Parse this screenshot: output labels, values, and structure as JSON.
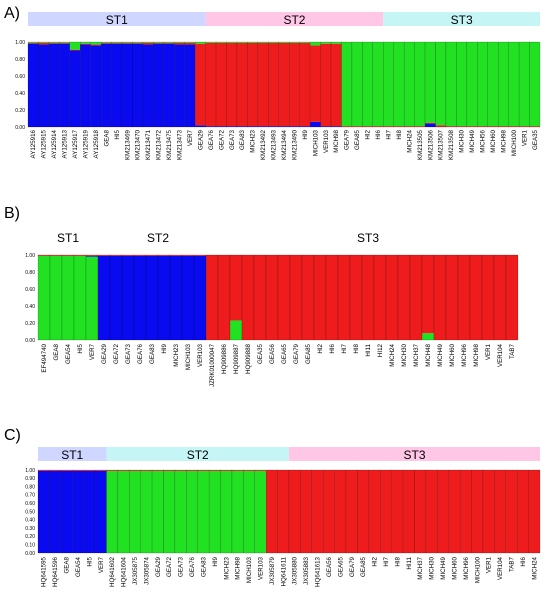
{
  "chart_data": [
    {
      "type": "bar",
      "stacked": true,
      "panel_label": "A)",
      "yticks": [
        "0.00",
        "0.20",
        "0.40",
        "0.60",
        "0.80",
        "1.00"
      ],
      "ylim": [
        0,
        1
      ],
      "cluster_colors": {
        "ST1": "#0a0af0",
        "ST2": "#ee1c1c",
        "ST3": "#22e022"
      },
      "groups": [
        {
          "label": "ST1",
          "cluster": "ST1",
          "n": 17
        },
        {
          "label": "ST2",
          "cluster": "ST2",
          "n": 17
        },
        {
          "label": "ST3",
          "cluster": "ST3",
          "n": 20
        }
      ],
      "categories": [
        "AY125916",
        "AY125915",
        "AY125914",
        "AY125913",
        "AY125917",
        "AY125919",
        "AY125918",
        "GEA8",
        "HI5",
        "KM213469",
        "KM213470",
        "KM213471",
        "KM213472",
        "KM213475",
        "KM213473",
        "VER7",
        "GEA29",
        "GEA76",
        "GEA72",
        "GEA73",
        "GEA83",
        "MICH23",
        "KM213492",
        "KM213493",
        "KM213494",
        "KM213490",
        "HI9",
        "MICH103",
        "VER103",
        "MICH98",
        "GEA79",
        "GEA85",
        "HI2",
        "HI6",
        "HI7",
        "HI8",
        "MICH24",
        "KM213505",
        "KM213506",
        "KM213507",
        "KM213508",
        "MICH30",
        "MICH49",
        "MICH56",
        "MICH60",
        "MICH98",
        "MICH100",
        "VER1",
        "GEA35"
      ],
      "series": [
        {
          "cluster": "ST1",
          "values": [
            0.98,
            0.97,
            0.98,
            0.98,
            0.9,
            0.97,
            0.96,
            0.98,
            0.98,
            0.98,
            0.98,
            0.97,
            0.98,
            0.98,
            0.97,
            0.97,
            0.02,
            0.01,
            0.01,
            0.01,
            0.01,
            0.01,
            0.01,
            0.01,
            0.01,
            0.01,
            0.01,
            0.06,
            0.01,
            0.01,
            0.0,
            0.0,
            0.0,
            0.0,
            0.0,
            0.0,
            0.0,
            0.0,
            0.04,
            0.0,
            0.0,
            0.0,
            0.0,
            0.0,
            0.0,
            0.0,
            0.0,
            0.0,
            0.0
          ]
        },
        {
          "cluster": "ST2",
          "values": [
            0.01,
            0.02,
            0.01,
            0.01,
            0.01,
            0.01,
            0.01,
            0.01,
            0.01,
            0.01,
            0.01,
            0.02,
            0.01,
            0.01,
            0.02,
            0.02,
            0.96,
            0.98,
            0.98,
            0.98,
            0.98,
            0.98,
            0.98,
            0.98,
            0.98,
            0.98,
            0.98,
            0.9,
            0.97,
            0.97,
            0.01,
            0.01,
            0.01,
            0.01,
            0.01,
            0.01,
            0.01,
            0.01,
            0.01,
            0.02,
            0.01,
            0.01,
            0.01,
            0.01,
            0.01,
            0.01,
            0.01,
            0.01,
            0.01
          ]
        },
        {
          "cluster": "ST3",
          "values": [
            0.01,
            0.01,
            0.01,
            0.01,
            0.09,
            0.02,
            0.03,
            0.01,
            0.01,
            0.01,
            0.01,
            0.01,
            0.01,
            0.01,
            0.01,
            0.01,
            0.02,
            0.01,
            0.01,
            0.01,
            0.01,
            0.01,
            0.01,
            0.01,
            0.01,
            0.01,
            0.01,
            0.04,
            0.02,
            0.02,
            0.99,
            0.99,
            0.99,
            0.99,
            0.99,
            0.99,
            0.99,
            0.99,
            0.95,
            0.98,
            0.99,
            0.99,
            0.99,
            0.99,
            0.99,
            0.99,
            0.99,
            0.99,
            0.99
          ]
        }
      ]
    },
    {
      "type": "bar",
      "stacked": true,
      "panel_label": "B)",
      "yticks": [
        "0.00",
        "0.20",
        "0.40",
        "0.60",
        "0.80",
        "1.00"
      ],
      "ylim": [
        0,
        1
      ],
      "cluster_colors": {
        "ST1": "#22e022",
        "ST2": "#0a0af0",
        "ST3": "#ee1c1c"
      },
      "groups": [
        {
          "label": "ST1",
          "cluster": "ST1",
          "n": 5
        },
        {
          "label": "ST2",
          "cluster": "ST2",
          "n": 10
        },
        {
          "label": "ST3",
          "cluster": "ST3",
          "n": 30
        }
      ],
      "categories": [
        "EF494740",
        "GEA8",
        "GEA54",
        "HI5",
        "VER7",
        "GEA29",
        "GEA72",
        "GEA73",
        "GEA76",
        "GEA83",
        "HI9",
        "MICH23",
        "MICH103",
        "VER103",
        "JZRK01000047",
        "HQ909886",
        "HQ909887",
        "HQ909888",
        "GEA35",
        "GEA56",
        "GEA65",
        "GEA79",
        "GEA85",
        "HI2",
        "HI6",
        "HI7",
        "HI8",
        "HI11",
        "HI12",
        "MICH24",
        "MICH30",
        "MICH37",
        "MICH48",
        "MICH49",
        "MICH60",
        "MICH96",
        "MICH98",
        "VER1",
        "VER104",
        "TAB7"
      ],
      "series": [
        {
          "cluster": "ST1",
          "values": [
            0.99,
            0.99,
            0.99,
            0.99,
            0.98,
            0.0,
            0.0,
            0.0,
            0.0,
            0.0,
            0.0,
            0.0,
            0.0,
            0.0,
            0.0,
            0.0,
            0.23,
            0.0,
            0.0,
            0.0,
            0.0,
            0.0,
            0.0,
            0.0,
            0.0,
            0.0,
            0.0,
            0.0,
            0.0,
            0.0,
            0.0,
            0.0,
            0.08,
            0.0,
            0.0,
            0.0,
            0.0,
            0.0,
            0.0,
            0.0
          ]
        },
        {
          "cluster": "ST2",
          "values": [
            0.0,
            0.0,
            0.0,
            0.0,
            0.01,
            0.99,
            0.99,
            0.99,
            0.99,
            0.99,
            0.99,
            0.99,
            0.99,
            0.99,
            0.0,
            0.0,
            0.0,
            0.0,
            0.0,
            0.0,
            0.0,
            0.0,
            0.0,
            0.0,
            0.0,
            0.0,
            0.0,
            0.0,
            0.0,
            0.0,
            0.0,
            0.0,
            0.0,
            0.0,
            0.0,
            0.0,
            0.0,
            0.0,
            0.0,
            0.0
          ]
        },
        {
          "cluster": "ST3",
          "values": [
            0.01,
            0.01,
            0.01,
            0.01,
            0.01,
            0.01,
            0.01,
            0.01,
            0.01,
            0.01,
            0.01,
            0.01,
            0.01,
            0.01,
            1.0,
            1.0,
            0.77,
            1.0,
            1.0,
            1.0,
            1.0,
            1.0,
            1.0,
            1.0,
            1.0,
            1.0,
            1.0,
            1.0,
            1.0,
            1.0,
            1.0,
            1.0,
            0.92,
            1.0,
            1.0,
            1.0,
            1.0,
            1.0,
            1.0,
            1.0
          ]
        }
      ]
    },
    {
      "type": "bar",
      "stacked": true,
      "panel_label": "C)",
      "yticks": [
        "0.00",
        "0.10",
        "0.20",
        "0.30",
        "0.40",
        "0.50",
        "0.60",
        "0.70",
        "0.80",
        "0.90",
        "1.00"
      ],
      "ylim": [
        0,
        1
      ],
      "cluster_colors": {
        "ST1": "#0a0af0",
        "ST2": "#22e022",
        "ST3": "#ee1c1c"
      },
      "groups": [
        {
          "label": "ST1",
          "cluster": "ST1",
          "n": 6
        },
        {
          "label": "ST2",
          "cluster": "ST2",
          "n": 16
        },
        {
          "label": "ST3",
          "cluster": "ST3",
          "n": 30
        }
      ],
      "categories": [
        "HQ641595",
        "HQ641596",
        "GEA8",
        "GEA54",
        "HI5",
        "VER7",
        "HQ641602",
        "HQ641604",
        "JX305875",
        "JX305874",
        "GEA29",
        "GEA72",
        "GEA73",
        "GEA76",
        "GEA83",
        "HI9",
        "MICH23",
        "MICH98",
        "MICH103",
        "VER103",
        "JX305879",
        "HQ641611",
        "JX305880",
        "JX305883",
        "HQ641613",
        "GEA56",
        "GEA65",
        "GEA79",
        "GEA85",
        "HI2",
        "HI7",
        "HI8",
        "HI11",
        "MICH37",
        "MICH30",
        "MICH49",
        "MICH60",
        "MICH96",
        "MICH100",
        "VER1",
        "VER104",
        "TAB7",
        "HI6",
        "MICH24"
      ],
      "series": [
        {
          "cluster": "ST1",
          "values": [
            0.99,
            0.99,
            0.99,
            0.99,
            0.99,
            0.99,
            0.0,
            0.0,
            0.0,
            0.0,
            0.0,
            0.0,
            0.0,
            0.0,
            0.0,
            0.0,
            0.0,
            0.0,
            0.0,
            0.0,
            0.0,
            0.0,
            0.0,
            0.0,
            0.0,
            0.0,
            0.0,
            0.0,
            0.0,
            0.0,
            0.0,
            0.0,
            0.0,
            0.0,
            0.0,
            0.0,
            0.0,
            0.0,
            0.0,
            0.0,
            0.0,
            0.0,
            0.0,
            0.0
          ]
        },
        {
          "cluster": "ST2",
          "values": [
            0.0,
            0.0,
            0.0,
            0.0,
            0.0,
            0.0,
            0.99,
            0.99,
            0.99,
            0.99,
            0.99,
            0.99,
            0.99,
            0.99,
            0.99,
            0.99,
            0.99,
            0.99,
            0.99,
            0.99,
            0.0,
            0.0,
            0.0,
            0.0,
            0.0,
            0.0,
            0.0,
            0.0,
            0.0,
            0.0,
            0.0,
            0.0,
            0.0,
            0.0,
            0.0,
            0.0,
            0.0,
            0.0,
            0.0,
            0.0,
            0.0,
            0.0,
            0.0,
            0.0
          ]
        },
        {
          "cluster": "ST3",
          "values": [
            0.01,
            0.01,
            0.01,
            0.01,
            0.01,
            0.01,
            0.01,
            0.01,
            0.01,
            0.01,
            0.01,
            0.01,
            0.01,
            0.01,
            0.01,
            0.01,
            0.01,
            0.01,
            0.01,
            0.01,
            1.0,
            1.0,
            1.0,
            1.0,
            1.0,
            1.0,
            1.0,
            1.0,
            1.0,
            1.0,
            1.0,
            1.0,
            1.0,
            1.0,
            1.0,
            1.0,
            1.0,
            1.0,
            1.0,
            1.0,
            1.0,
            1.0,
            1.0,
            1.0
          ]
        }
      ]
    }
  ]
}
